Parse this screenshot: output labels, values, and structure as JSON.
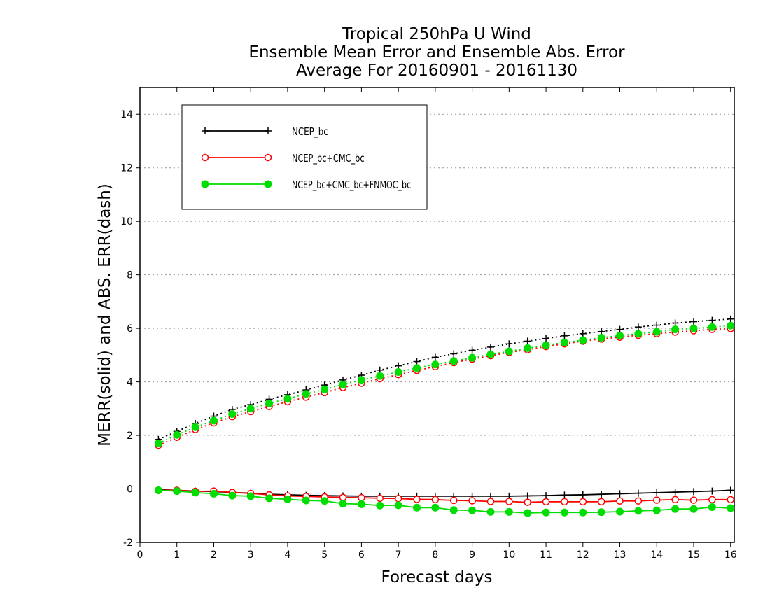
{
  "chart_data": {
    "type": "line",
    "title": [
      "Tropical 250hPa U Wind",
      "Ensemble Mean Error and Ensemble Abs. Error",
      "Average For 20160901 - 20161130"
    ],
    "xlabel": "Forecast days",
    "ylabel": "MERR(solid) and ABS. ERR(dash)",
    "xlim": [
      0,
      16.1
    ],
    "ylim": [
      -2,
      15
    ],
    "x_ticks": [
      0,
      1,
      2,
      3,
      4,
      5,
      6,
      7,
      8,
      9,
      10,
      11,
      12,
      13,
      14,
      15,
      16
    ],
    "y_ticks": [
      -2,
      0,
      2,
      4,
      6,
      8,
      10,
      12,
      14
    ],
    "grid": "horizontal dotted",
    "legend_position": "top-left",
    "x": [
      0.5,
      1.0,
      1.5,
      2.0,
      2.5,
      3.0,
      3.5,
      4.0,
      4.5,
      5.0,
      5.5,
      6.0,
      6.5,
      7.0,
      7.5,
      8.0,
      8.5,
      9.0,
      9.5,
      10.0,
      10.5,
      11.0,
      11.5,
      12.0,
      12.5,
      13.0,
      13.5,
      14.0,
      14.5,
      15.0,
      15.5,
      16.0
    ],
    "series": [
      {
        "name": "NCEP_bc",
        "color": "#000000",
        "marker": "plus",
        "abs_error_dashed": [
          1.85,
          2.15,
          2.45,
          2.72,
          2.97,
          3.15,
          3.35,
          3.52,
          3.7,
          3.88,
          4.07,
          4.25,
          4.44,
          4.6,
          4.76,
          4.92,
          5.05,
          5.18,
          5.3,
          5.42,
          5.52,
          5.62,
          5.72,
          5.8,
          5.88,
          5.96,
          6.05,
          6.12,
          6.2,
          6.25,
          6.3,
          6.35
        ],
        "mean_error_solid": [
          -0.03,
          -0.05,
          -0.08,
          -0.1,
          -0.13,
          -0.16,
          -0.2,
          -0.22,
          -0.24,
          -0.25,
          -0.26,
          -0.27,
          -0.27,
          -0.27,
          -0.27,
          -0.27,
          -0.27,
          -0.27,
          -0.27,
          -0.27,
          -0.26,
          -0.25,
          -0.23,
          -0.22,
          -0.2,
          -0.18,
          -0.16,
          -0.14,
          -0.12,
          -0.1,
          -0.08,
          -0.05
        ]
      },
      {
        "name": "NCEP_bc+CMC_bc",
        "color": "#ff0000",
        "marker": "open-circle",
        "abs_error_dashed": [
          1.63,
          1.93,
          2.22,
          2.47,
          2.7,
          2.89,
          3.08,
          3.26,
          3.43,
          3.6,
          3.79,
          3.95,
          4.12,
          4.27,
          4.43,
          4.57,
          4.72,
          4.85,
          4.98,
          5.1,
          5.2,
          5.32,
          5.42,
          5.52,
          5.6,
          5.67,
          5.74,
          5.8,
          5.86,
          5.91,
          5.96,
          5.99
        ],
        "mean_error_solid": [
          -0.05,
          -0.05,
          -0.09,
          -0.08,
          -0.13,
          -0.17,
          -0.22,
          -0.26,
          -0.28,
          -0.3,
          -0.32,
          -0.33,
          -0.35,
          -0.36,
          -0.39,
          -0.4,
          -0.43,
          -0.44,
          -0.47,
          -0.47,
          -0.5,
          -0.48,
          -0.48,
          -0.48,
          -0.48,
          -0.45,
          -0.45,
          -0.42,
          -0.4,
          -0.42,
          -0.4,
          -0.4
        ]
      },
      {
        "name": "NCEP_bc+CMC_bc+FNMOC_bc",
        "color": "#00dd00",
        "marker": "filled-circle",
        "abs_error_dashed": [
          1.7,
          2.02,
          2.31,
          2.55,
          2.8,
          3.0,
          3.2,
          3.37,
          3.55,
          3.72,
          3.9,
          4.07,
          4.22,
          4.37,
          4.52,
          4.65,
          4.78,
          4.9,
          5.03,
          5.14,
          5.26,
          5.37,
          5.47,
          5.56,
          5.65,
          5.73,
          5.8,
          5.87,
          5.96,
          6.0,
          6.05,
          6.1
        ],
        "mean_error_solid": [
          -0.05,
          -0.08,
          -0.14,
          -0.18,
          -0.25,
          -0.27,
          -0.35,
          -0.39,
          -0.43,
          -0.45,
          -0.55,
          -0.57,
          -0.62,
          -0.61,
          -0.7,
          -0.7,
          -0.79,
          -0.8,
          -0.86,
          -0.86,
          -0.9,
          -0.88,
          -0.88,
          -0.88,
          -0.87,
          -0.85,
          -0.82,
          -0.8,
          -0.75,
          -0.75,
          -0.68,
          -0.72
        ]
      }
    ]
  }
}
